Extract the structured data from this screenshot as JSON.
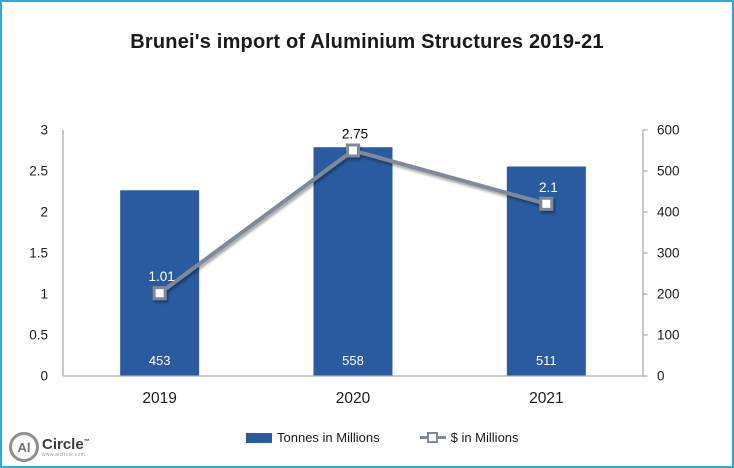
{
  "chart_data": {
    "type": "combo-bar-line",
    "title": "Brunei's import of Aluminium Structures 2019-21",
    "categories": [
      "2019",
      "2020",
      "2021"
    ],
    "series": [
      {
        "name": "Tonnes in Millions",
        "type": "bar",
        "axis": "right",
        "values": [
          453,
          558,
          511
        ],
        "data_labels": [
          "453",
          "558",
          "511"
        ],
        "data_label_color": "#FFFFFF",
        "data_label_position": "inside-base",
        "color": "#2A5A9F"
      },
      {
        "name": "$ in Millions",
        "type": "line",
        "axis": "left",
        "values": [
          1.01,
          2.75,
          2.1
        ],
        "data_labels": [
          "1.01",
          "2.75",
          "2.1"
        ],
        "data_label_colors": [
          "#FFFFFF",
          "#000000",
          "#FFFFFF"
        ],
        "color": "#7E8A99",
        "marker": "square-outline",
        "marker_fill": "#FFFFFF"
      }
    ],
    "axes": {
      "left": {
        "min": 0,
        "max": 3,
        "ticks": [
          "0",
          "0.5",
          "1",
          "1.5",
          "2",
          "2.5",
          "3"
        ]
      },
      "right": {
        "min": 0,
        "max": 600,
        "ticks": [
          "0",
          "100",
          "200",
          "300",
          "400",
          "500",
          "600"
        ]
      }
    },
    "grid": false,
    "legend_position": "bottom"
  },
  "colors": {
    "frame_border": "#29ABE2",
    "axis_line": "#A6ADB5",
    "tick_text": "#1a1a1a",
    "bar": "#2A5A9F",
    "line": "#7E8A99"
  },
  "logo": {
    "circle_text": "Al",
    "brand": "Circle",
    "brand_mark": "™",
    "url": "www.alcircle.com"
  }
}
